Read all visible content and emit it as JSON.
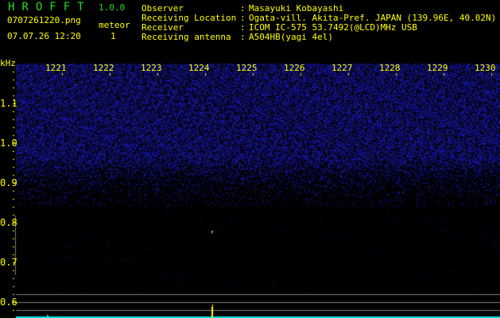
{
  "header": {
    "app_title": "HROFFT",
    "version": "1.0.0",
    "file_name": "0707261220.png",
    "datetime": "07.07.26 12:20",
    "meteor_label": "meteor",
    "meteor_count": "1"
  },
  "info": [
    {
      "label": "Observer",
      "value": "Masayuki Kobayashi"
    },
    {
      "label": "Receiving Location",
      "value": "Ogata-vill. Akita-Pref. JAPAN (139.96E, 40.02N)"
    },
    {
      "label": "Receiver",
      "value": "ICOM IC-575 53.7492(@LCD)MHz USB"
    },
    {
      "label": "Receiving antenna",
      "value": "A504HB(yagi 4el)"
    }
  ],
  "colon": ":",
  "spectrogram": {
    "y_unit": "kHz",
    "y_ticks": [
      "1.1",
      "1.0",
      "0.9",
      "0.8",
      "0.7",
      "0.6"
    ],
    "x_ticks": [
      "1221",
      "1222",
      "1223",
      "1224",
      "1225",
      "1226",
      "1227",
      "1228",
      "1229",
      "1230"
    ],
    "colors": {
      "text": "#ffff00",
      "title": "#22dd22",
      "noise": "#2020c0",
      "baseline": "#00e0e0",
      "grid": "#808080"
    }
  }
}
